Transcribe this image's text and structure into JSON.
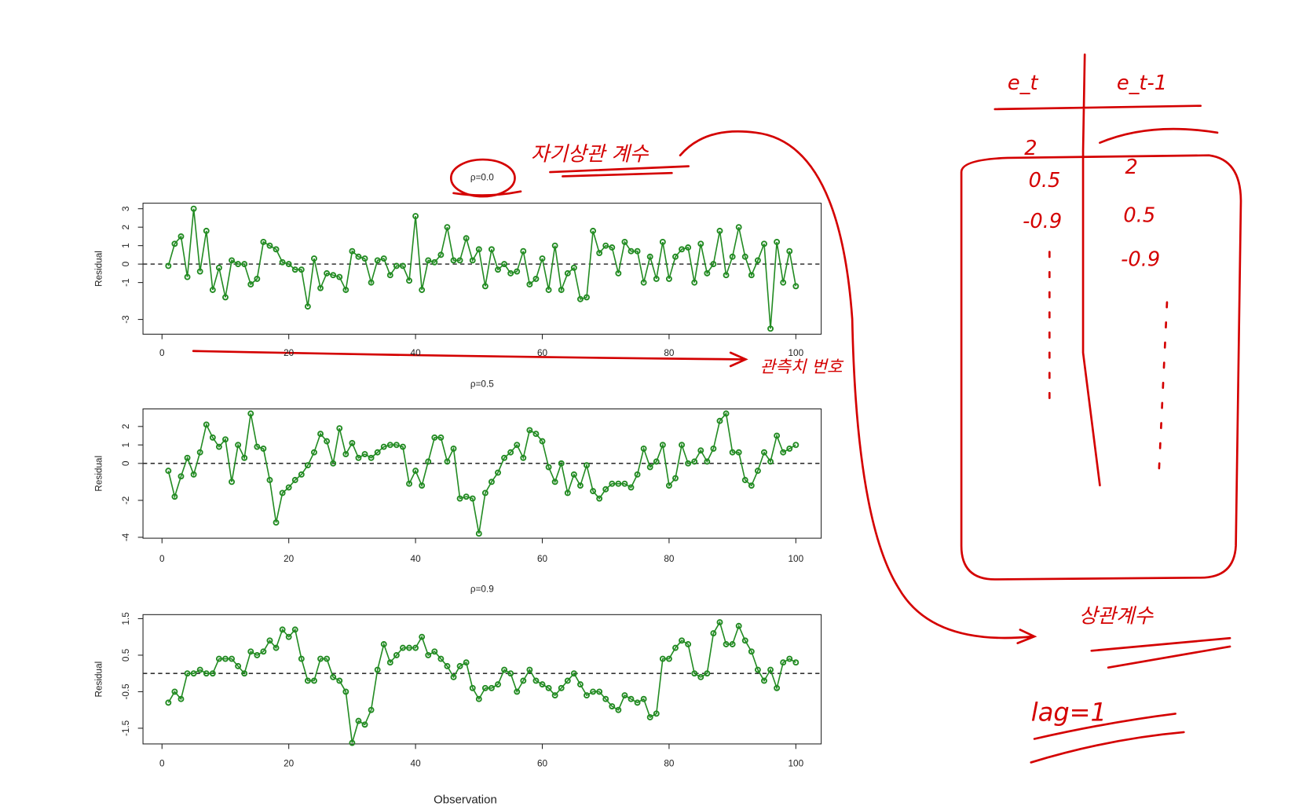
{
  "chart_data": [
    {
      "type": "line",
      "title": "ρ=0.0",
      "y_label": "Residual",
      "color": "#228b22",
      "hline": 0,
      "x": [
        1,
        2,
        3,
        4,
        5,
        6,
        7,
        8,
        9,
        10,
        11,
        12,
        13,
        14,
        15,
        16,
        17,
        18,
        19,
        20,
        21,
        22,
        23,
        24,
        25,
        26,
        27,
        28,
        29,
        30,
        31,
        32,
        33,
        34,
        35,
        36,
        37,
        38,
        39,
        40,
        41,
        42,
        43,
        44,
        45,
        46,
        47,
        48,
        49,
        50,
        51,
        52,
        53,
        54,
        55,
        56,
        57,
        58,
        59,
        60,
        61,
        62,
        63,
        64,
        65,
        66,
        67,
        68,
        69,
        70,
        71,
        72,
        73,
        74,
        75,
        76,
        77,
        78,
        79,
        80,
        81,
        82,
        83,
        84,
        85,
        86,
        87,
        88,
        89,
        90,
        91,
        92,
        93,
        94,
        95,
        96,
        97,
        98,
        99,
        100
      ],
      "values": [
        -0.1,
        1.1,
        1.5,
        -0.7,
        3.0,
        -0.4,
        1.8,
        -1.4,
        -0.2,
        -1.8,
        0.2,
        0.0,
        0.0,
        -1.1,
        -0.8,
        1.2,
        1.0,
        0.8,
        0.1,
        0.0,
        -0.3,
        -0.3,
        -2.3,
        0.3,
        -1.3,
        -0.5,
        -0.6,
        -0.7,
        -1.4,
        0.7,
        0.4,
        0.3,
        -1.0,
        0.2,
        0.3,
        -0.6,
        -0.1,
        -0.1,
        -0.9,
        2.6,
        -1.4,
        0.2,
        0.1,
        0.5,
        2.0,
        0.2,
        0.2,
        1.4,
        0.2,
        0.8,
        -1.2,
        0.8,
        -0.3,
        0.0,
        -0.5,
        -0.4,
        0.7,
        -1.1,
        -0.8,
        0.3,
        -1.4,
        1.0,
        -1.4,
        -0.5,
        -0.2,
        -1.9,
        -1.8,
        1.8,
        0.6,
        1.0,
        0.9,
        -0.5,
        1.2,
        0.7,
        0.7,
        -1.0,
        0.4,
        -0.8,
        1.2,
        -0.8,
        0.4,
        0.8,
        0.9,
        -1.0,
        1.1,
        -0.5,
        0.0,
        1.8,
        -0.6,
        0.4,
        2.0,
        0.4,
        -0.6,
        0.2,
        1.1,
        -3.5,
        1.2,
        -1.0,
        0.7,
        -1.2
      ],
      "xlim": [
        -3,
        104
      ],
      "xticks": [
        0,
        20,
        40,
        60,
        80,
        100
      ],
      "ylim": [
        -3.8,
        3.3
      ],
      "yticks": [
        -3,
        -1,
        0,
        1,
        2,
        3
      ]
    },
    {
      "type": "line",
      "title": "ρ=0.5",
      "y_label": "Residual",
      "color": "#228b22",
      "hline": 0,
      "x": [
        1,
        2,
        3,
        4,
        5,
        6,
        7,
        8,
        9,
        10,
        11,
        12,
        13,
        14,
        15,
        16,
        17,
        18,
        19,
        20,
        21,
        22,
        23,
        24,
        25,
        26,
        27,
        28,
        29,
        30,
        31,
        32,
        33,
        34,
        35,
        36,
        37,
        38,
        39,
        40,
        41,
        42,
        43,
        44,
        45,
        46,
        47,
        48,
        49,
        50,
        51,
        52,
        53,
        54,
        55,
        56,
        57,
        58,
        59,
        60,
        61,
        62,
        63,
        64,
        65,
        66,
        67,
        68,
        69,
        70,
        71,
        72,
        73,
        74,
        75,
        76,
        77,
        78,
        79,
        80,
        81,
        82,
        83,
        84,
        85,
        86,
        87,
        88,
        89,
        90,
        91,
        92,
        93,
        94,
        95,
        96,
        97,
        98,
        99,
        100
      ],
      "values": [
        -0.4,
        -1.8,
        -0.7,
        0.3,
        -0.6,
        0.6,
        2.1,
        1.4,
        0.9,
        1.3,
        -1.0,
        1.0,
        0.3,
        2.7,
        0.9,
        0.8,
        -0.9,
        -3.2,
        -1.6,
        -1.3,
        -0.9,
        -0.6,
        -0.1,
        0.6,
        1.6,
        1.2,
        0.0,
        1.9,
        0.5,
        1.1,
        0.3,
        0.5,
        0.3,
        0.6,
        0.9,
        1.0,
        1.0,
        0.9,
        -1.1,
        -0.4,
        -1.2,
        0.1,
        1.4,
        1.4,
        0.1,
        0.8,
        -1.9,
        -1.8,
        -1.9,
        -3.8,
        -1.6,
        -1.0,
        -0.5,
        0.3,
        0.6,
        1.0,
        0.3,
        1.8,
        1.6,
        1.2,
        -0.2,
        -1.0,
        0.0,
        -1.6,
        -0.6,
        -1.2,
        -0.1,
        -1.5,
        -1.9,
        -1.4,
        -1.1,
        -1.1,
        -1.1,
        -1.3,
        -0.6,
        0.8,
        -0.2,
        0.1,
        1.0,
        -1.2,
        -0.8,
        1.0,
        0.0,
        0.1,
        0.7,
        0.1,
        0.8,
        2.3,
        2.7,
        0.6,
        0.6,
        -0.9,
        -1.2,
        -0.4,
        0.6,
        0.1,
        1.5,
        0.6,
        0.8,
        1.0
      ],
      "xlim": [
        -3,
        104
      ],
      "xticks": [
        0,
        20,
        40,
        60,
        80,
        100
      ],
      "ylim": [
        -4.05,
        2.95
      ],
      "yticks": [
        -4,
        -2,
        0,
        1,
        2
      ]
    },
    {
      "type": "line",
      "title": "ρ=0.9",
      "y_label": "Residual",
      "x_label": "Observation",
      "color": "#228b22",
      "hline": 0,
      "x": [
        1,
        2,
        3,
        4,
        5,
        6,
        7,
        8,
        9,
        10,
        11,
        12,
        13,
        14,
        15,
        16,
        17,
        18,
        19,
        20,
        21,
        22,
        23,
        24,
        25,
        26,
        27,
        28,
        29,
        30,
        31,
        32,
        33,
        34,
        35,
        36,
        37,
        38,
        39,
        40,
        41,
        42,
        43,
        44,
        45,
        46,
        47,
        48,
        49,
        50,
        51,
        52,
        53,
        54,
        55,
        56,
        57,
        58,
        59,
        60,
        61,
        62,
        63,
        64,
        65,
        66,
        67,
        68,
        69,
        70,
        71,
        72,
        73,
        74,
        75,
        76,
        77,
        78,
        79,
        80,
        81,
        82,
        83,
        84,
        85,
        86,
        87,
        88,
        89,
        90,
        91,
        92,
        93,
        94,
        95,
        96,
        97,
        98,
        99,
        100
      ],
      "values": [
        -0.8,
        -0.5,
        -0.7,
        0.0,
        0.0,
        0.1,
        0.0,
        0.0,
        0.4,
        0.4,
        0.4,
        0.2,
        0.0,
        0.6,
        0.5,
        0.6,
        0.9,
        0.7,
        1.2,
        1.0,
        1.2,
        0.4,
        -0.2,
        -0.2,
        0.4,
        0.4,
        -0.1,
        -0.2,
        -0.5,
        -1.9,
        -1.3,
        -1.4,
        -1.0,
        0.1,
        0.8,
        0.3,
        0.5,
        0.7,
        0.7,
        0.7,
        1.0,
        0.5,
        0.6,
        0.4,
        0.2,
        -0.1,
        0.2,
        0.3,
        -0.4,
        -0.7,
        -0.4,
        -0.4,
        -0.3,
        0.1,
        0.0,
        -0.5,
        -0.2,
        0.1,
        -0.2,
        -0.3,
        -0.4,
        -0.6,
        -0.4,
        -0.2,
        0.0,
        -0.3,
        -0.6,
        -0.5,
        -0.5,
        -0.7,
        -0.9,
        -1.0,
        -0.6,
        -0.7,
        -0.8,
        -0.7,
        -1.2,
        -1.1,
        0.4,
        0.4,
        0.7,
        0.9,
        0.8,
        0.0,
        -0.1,
        0.0,
        1.1,
        1.4,
        0.8,
        0.8,
        1.3,
        0.9,
        0.6,
        0.1,
        -0.2,
        0.1,
        -0.4,
        0.3,
        0.4,
        0.3
      ],
      "xlim": [
        -3,
        104
      ],
      "xticks": [
        0,
        20,
        40,
        60,
        80,
        100
      ],
      "ylim": [
        -1.93,
        1.61
      ],
      "yticks": [
        -1.5,
        -0.5,
        0.5,
        1.5
      ]
    }
  ],
  "annotations": {
    "autocorr_note": "자기상관 계수",
    "index_note": "관측치 번호",
    "corr_note": "상관계수",
    "lag_note": "lag=1",
    "table": {
      "headers": [
        "e_t",
        "e_t-1"
      ],
      "col_t": [
        "2",
        "0.5",
        "-0.9"
      ],
      "col_t1": [
        "2",
        "0.5",
        "-0.9"
      ]
    }
  }
}
